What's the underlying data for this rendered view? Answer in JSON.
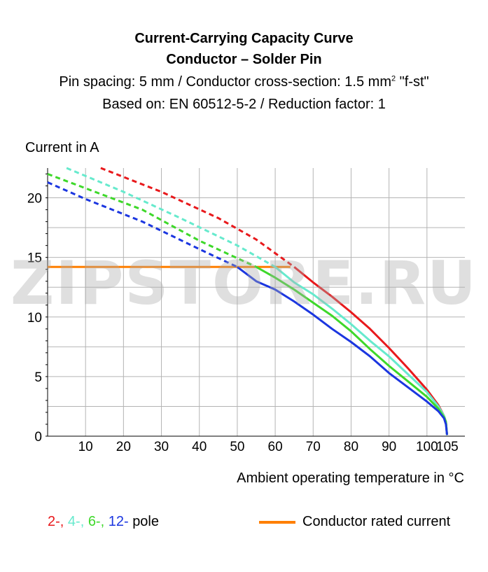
{
  "chart_data": {
    "type": "line",
    "title": "Current-Carrying Capacity Curve",
    "subtitle": "Conductor – Solder Pin",
    "subtitle_line3_prefix": "Pin spacing: 5 mm / Conductor cross-section: 1.5 mm",
    "subtitle_line3_sup": "2",
    "subtitle_line3_suffix": " \"f-st\"",
    "subtitle_line4": "Based on: EN 60512-5-2 / Reduction factor: 1",
    "ylabel": "Current in A",
    "xlabel": "Ambient operating temperature in °C",
    "xlim": [
      0,
      110
    ],
    "ylim": [
      0,
      22.5
    ],
    "x_ticks": [
      10,
      20,
      30,
      40,
      50,
      60,
      70,
      80,
      90,
      100,
      105
    ],
    "y_ticks": [
      0,
      5,
      10,
      15,
      20
    ],
    "grid": true,
    "rated_current": {
      "label": "Conductor rated current",
      "value": 14.2,
      "x_end": 64,
      "color": "#ff7f00"
    },
    "series": [
      {
        "name": "2-",
        "color": "#e8191c",
        "dashed": [
          [
            14,
            22.5
          ],
          [
            30,
            20.5
          ],
          [
            45,
            18.3
          ],
          [
            55,
            16.5
          ],
          [
            65,
            14.2
          ]
        ],
        "solid": [
          [
            65,
            14.2
          ],
          [
            70,
            12.9
          ],
          [
            75,
            11.7
          ],
          [
            80,
            10.4
          ],
          [
            85,
            9.0
          ],
          [
            90,
            7.4
          ],
          [
            95,
            5.7
          ],
          [
            100,
            3.9
          ],
          [
            103,
            2.6
          ],
          [
            104.5,
            1.7
          ],
          [
            105,
            1.2
          ],
          [
            105.3,
            0.1
          ]
        ]
      },
      {
        "name": "4-",
        "color": "#66eacd",
        "dashed": [
          [
            5,
            22.5
          ],
          [
            20,
            20.5
          ],
          [
            35,
            18.3
          ],
          [
            50,
            16.0
          ],
          [
            60,
            14.2
          ]
        ],
        "solid": [
          [
            60,
            14.2
          ],
          [
            65,
            12.9
          ],
          [
            70,
            11.9
          ],
          [
            75,
            10.7
          ],
          [
            80,
            9.4
          ],
          [
            85,
            8.0
          ],
          [
            90,
            6.7
          ],
          [
            95,
            5.2
          ],
          [
            100,
            3.7
          ],
          [
            103,
            2.5
          ],
          [
            104.5,
            1.7
          ],
          [
            105,
            1.2
          ],
          [
            105.3,
            0.1
          ]
        ]
      },
      {
        "name": "6-",
        "color": "#3ed82a",
        "dashed": [
          [
            0,
            22.0
          ],
          [
            10,
            20.8
          ],
          [
            25,
            19.0
          ],
          [
            40,
            16.4
          ],
          [
            55,
            14.2
          ]
        ],
        "solid": [
          [
            55,
            14.2
          ],
          [
            60,
            13.3
          ],
          [
            65,
            12.3
          ],
          [
            70,
            11.2
          ],
          [
            75,
            10.1
          ],
          [
            80,
            8.8
          ],
          [
            85,
            7.3
          ],
          [
            90,
            5.9
          ],
          [
            95,
            4.6
          ],
          [
            100,
            3.3
          ],
          [
            103,
            2.3
          ],
          [
            104.5,
            1.6
          ],
          [
            105,
            1.2
          ],
          [
            105.3,
            0.1
          ]
        ]
      },
      {
        "name": "12-",
        "color": "#1b36e0",
        "dashed": [
          [
            0,
            21.3
          ],
          [
            10,
            19.9
          ],
          [
            25,
            18.0
          ],
          [
            40,
            15.7
          ],
          [
            50,
            14.2
          ]
        ],
        "solid": [
          [
            50,
            14.2
          ],
          [
            55,
            13.0
          ],
          [
            60,
            12.3
          ],
          [
            65,
            11.3
          ],
          [
            70,
            10.2
          ],
          [
            75,
            9.0
          ],
          [
            80,
            7.9
          ],
          [
            85,
            6.7
          ],
          [
            90,
            5.3
          ],
          [
            95,
            4.1
          ],
          [
            100,
            2.9
          ],
          [
            103,
            2.1
          ],
          [
            104.5,
            1.5
          ],
          [
            105,
            1.0
          ],
          [
            105.3,
            0.1
          ]
        ]
      }
    ]
  },
  "legend": {
    "suffix": "pole"
  },
  "watermark": "ZIPSTORE.RU"
}
